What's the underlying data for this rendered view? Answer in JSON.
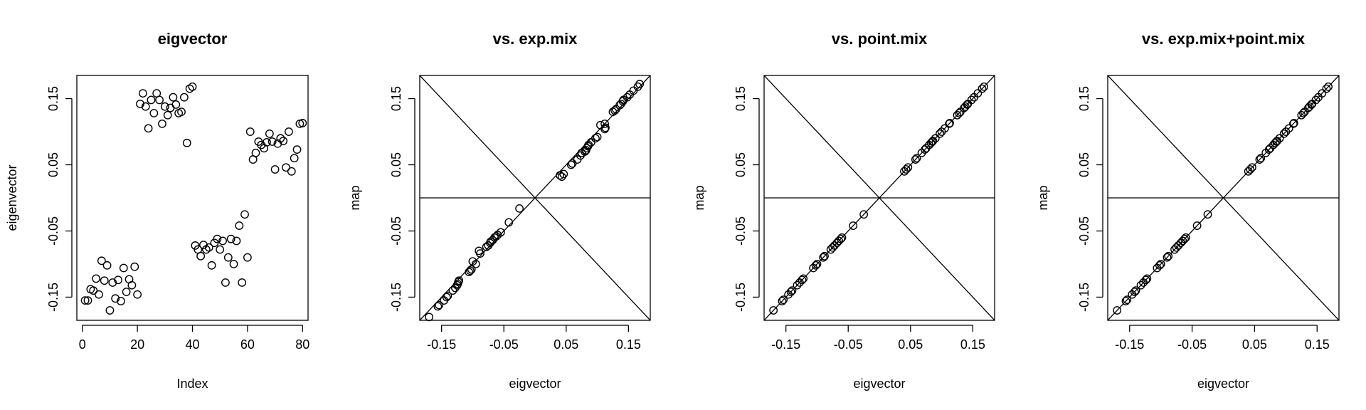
{
  "chart_data": [
    {
      "type": "scatter",
      "title": "eigvector",
      "xlabel": "Index",
      "ylabel": "eigenvector",
      "xlim": [
        -2,
        82
      ],
      "ylim": [
        -0.185,
        0.185
      ],
      "x_ticks": [
        0,
        20,
        40,
        60,
        80
      ],
      "x_tick_labels": [
        "0",
        "20",
        "40",
        "60",
        "80"
      ],
      "y_ticks": [
        -0.15,
        -0.05,
        0.05,
        0.15
      ],
      "y_tick_labels": [
        "-0.15",
        "-0.05",
        "0.05",
        "0.15"
      ],
      "grid": false,
      "points": [
        [
          1,
          -0.155
        ],
        [
          2,
          -0.155
        ],
        [
          3,
          -0.138
        ],
        [
          4,
          -0.14
        ],
        [
          5,
          -0.122
        ],
        [
          6,
          -0.146
        ],
        [
          7,
          -0.095
        ],
        [
          8,
          -0.125
        ],
        [
          9,
          -0.102
        ],
        [
          10,
          -0.17
        ],
        [
          11,
          -0.128
        ],
        [
          12,
          -0.152
        ],
        [
          13,
          -0.124
        ],
        [
          14,
          -0.156
        ],
        [
          15,
          -0.106
        ],
        [
          16,
          -0.142
        ],
        [
          17,
          -0.123
        ],
        [
          18,
          -0.132
        ],
        [
          19,
          -0.104
        ],
        [
          20,
          -0.146
        ],
        [
          21,
          0.142
        ],
        [
          22,
          0.158
        ],
        [
          23,
          0.138
        ],
        [
          24,
          0.105
        ],
        [
          25,
          0.148
        ],
        [
          26,
          0.128
        ],
        [
          27,
          0.158
        ],
        [
          28,
          0.148
        ],
        [
          29,
          0.112
        ],
        [
          30,
          0.138
        ],
        [
          31,
          0.125
        ],
        [
          32,
          0.136
        ],
        [
          33,
          0.152
        ],
        [
          34,
          0.141
        ],
        [
          35,
          0.128
        ],
        [
          36,
          0.13
        ],
        [
          37,
          0.152
        ],
        [
          38,
          0.083
        ],
        [
          39,
          0.165
        ],
        [
          40,
          0.168
        ],
        [
          41,
          -0.072
        ],
        [
          42,
          -0.078
        ],
        [
          43,
          -0.088
        ],
        [
          44,
          -0.071
        ],
        [
          45,
          -0.078
        ],
        [
          46,
          -0.075
        ],
        [
          47,
          -0.102
        ],
        [
          48,
          -0.068
        ],
        [
          49,
          -0.062
        ],
        [
          50,
          -0.078
        ],
        [
          51,
          -0.065
        ],
        [
          52,
          -0.128
        ],
        [
          53,
          -0.09
        ],
        [
          54,
          -0.062
        ],
        [
          55,
          -0.1
        ],
        [
          56,
          -0.065
        ],
        [
          57,
          -0.042
        ],
        [
          58,
          -0.128
        ],
        [
          59,
          -0.025
        ],
        [
          60,
          -0.09
        ],
        [
          61,
          0.1
        ],
        [
          62,
          0.058
        ],
        [
          63,
          0.068
        ],
        [
          64,
          0.085
        ],
        [
          65,
          0.08
        ],
        [
          66,
          0.075
        ],
        [
          67,
          0.084
        ],
        [
          68,
          0.097
        ],
        [
          69,
          0.085
        ],
        [
          70,
          0.043
        ],
        [
          71,
          0.082
        ],
        [
          72,
          0.09
        ],
        [
          73,
          0.086
        ],
        [
          74,
          0.046
        ],
        [
          75,
          0.1
        ],
        [
          76,
          0.04
        ],
        [
          77,
          0.06
        ],
        [
          78,
          0.073
        ],
        [
          79,
          0.112
        ],
        [
          80,
          0.113
        ]
      ]
    },
    {
      "type": "scatter",
      "title": "vs. exp.mix",
      "xlabel": "eigvector",
      "ylabel": "map",
      "xlim": [
        -0.185,
        0.185
      ],
      "ylim": [
        -0.185,
        0.185
      ],
      "x_ticks": [
        -0.15,
        -0.05,
        0.05,
        0.15
      ],
      "x_tick_labels": [
        "-0.15",
        "-0.05",
        "0.05",
        "0.15"
      ],
      "y_ticks": [
        -0.15,
        -0.05,
        0.05,
        0.15
      ],
      "y_tick_labels": [
        "-0.15",
        "-0.05",
        "0.05",
        "0.15"
      ],
      "grid": false,
      "reference_lines": [
        "y = 0",
        "y = x",
        "y = -x"
      ],
      "points": [
        [
          -0.17,
          -0.18
        ],
        [
          -0.156,
          -0.164
        ],
        [
          -0.154,
          -0.162
        ],
        [
          -0.146,
          -0.155
        ],
        [
          -0.142,
          -0.15
        ],
        [
          -0.14,
          -0.148
        ],
        [
          -0.132,
          -0.14
        ],
        [
          -0.128,
          -0.136
        ],
        [
          -0.125,
          -0.132
        ],
        [
          -0.124,
          -0.13
        ],
        [
          -0.123,
          -0.127
        ],
        [
          -0.122,
          -0.125
        ],
        [
          -0.106,
          -0.112
        ],
        [
          -0.104,
          -0.11
        ],
        [
          -0.102,
          -0.108
        ],
        [
          -0.1,
          -0.096
        ],
        [
          -0.095,
          -0.1
        ],
        [
          -0.09,
          -0.08
        ],
        [
          -0.088,
          -0.084
        ],
        [
          -0.078,
          -0.074
        ],
        [
          -0.075,
          -0.072
        ],
        [
          -0.072,
          -0.068
        ],
        [
          -0.071,
          -0.066
        ],
        [
          -0.068,
          -0.064
        ],
        [
          -0.065,
          -0.06
        ],
        [
          -0.062,
          -0.058
        ],
        [
          -0.06,
          -0.056
        ],
        [
          -0.055,
          -0.052
        ],
        [
          -0.042,
          -0.037
        ],
        [
          -0.025,
          -0.016
        ],
        [
          0.043,
          0.032
        ],
        [
          0.046,
          0.036
        ],
        [
          0.04,
          0.034
        ],
        [
          0.058,
          0.05
        ],
        [
          0.06,
          0.052
        ],
        [
          0.068,
          0.058
        ],
        [
          0.073,
          0.064
        ],
        [
          0.075,
          0.068
        ],
        [
          0.08,
          0.07
        ],
        [
          0.082,
          0.072
        ],
        [
          0.085,
          0.078
        ],
        [
          0.086,
          0.08
        ],
        [
          0.083,
          0.075
        ],
        [
          0.09,
          0.084
        ],
        [
          0.097,
          0.09
        ],
        [
          0.1,
          0.092
        ],
        [
          0.105,
          0.11
        ],
        [
          0.112,
          0.104
        ],
        [
          0.113,
          0.106
        ],
        [
          0.112,
          0.112
        ],
        [
          0.125,
          0.13
        ],
        [
          0.128,
          0.132
        ],
        [
          0.13,
          0.134
        ],
        [
          0.136,
          0.14
        ],
        [
          0.138,
          0.142
        ],
        [
          0.141,
          0.146
        ],
        [
          0.142,
          0.148
        ],
        [
          0.148,
          0.152
        ],
        [
          0.152,
          0.156
        ],
        [
          0.158,
          0.162
        ],
        [
          0.165,
          0.168
        ],
        [
          0.168,
          0.172
        ]
      ]
    },
    {
      "type": "scatter",
      "title": "vs. point.mix",
      "xlabel": "eigvector",
      "ylabel": "map",
      "xlim": [
        -0.185,
        0.185
      ],
      "ylim": [
        -0.185,
        0.185
      ],
      "x_ticks": [
        -0.15,
        -0.05,
        0.05,
        0.15
      ],
      "x_tick_labels": [
        "-0.15",
        "-0.05",
        "0.05",
        "0.15"
      ],
      "y_ticks": [
        -0.15,
        -0.05,
        0.05,
        0.15
      ],
      "y_tick_labels": [
        "-0.15",
        "-0.05",
        "0.05",
        "0.15"
      ],
      "grid": false,
      "reference_lines": [
        "y = 0",
        "y = x",
        "y = -x"
      ],
      "points": [
        [
          -0.17,
          -0.17
        ],
        [
          -0.156,
          -0.156
        ],
        [
          -0.154,
          -0.154
        ],
        [
          -0.146,
          -0.146
        ],
        [
          -0.142,
          -0.142
        ],
        [
          -0.14,
          -0.14
        ],
        [
          -0.132,
          -0.132
        ],
        [
          -0.128,
          -0.128
        ],
        [
          -0.124,
          -0.124
        ],
        [
          -0.122,
          -0.122
        ],
        [
          -0.106,
          -0.106
        ],
        [
          -0.102,
          -0.102
        ],
        [
          -0.1,
          -0.1
        ],
        [
          -0.09,
          -0.09
        ],
        [
          -0.088,
          -0.088
        ],
        [
          -0.078,
          -0.078
        ],
        [
          -0.075,
          -0.075
        ],
        [
          -0.072,
          -0.072
        ],
        [
          -0.068,
          -0.068
        ],
        [
          -0.065,
          -0.065
        ],
        [
          -0.062,
          -0.062
        ],
        [
          -0.06,
          -0.06
        ],
        [
          -0.042,
          -0.042
        ],
        [
          -0.025,
          -0.025
        ],
        [
          0.04,
          0.04
        ],
        [
          0.043,
          0.043
        ],
        [
          0.046,
          0.046
        ],
        [
          0.058,
          0.058
        ],
        [
          0.06,
          0.06
        ],
        [
          0.068,
          0.068
        ],
        [
          0.073,
          0.073
        ],
        [
          0.075,
          0.075
        ],
        [
          0.08,
          0.08
        ],
        [
          0.083,
          0.083
        ],
        [
          0.085,
          0.085
        ],
        [
          0.086,
          0.086
        ],
        [
          0.09,
          0.09
        ],
        [
          0.097,
          0.097
        ],
        [
          0.1,
          0.1
        ],
        [
          0.105,
          0.105
        ],
        [
          0.112,
          0.112
        ],
        [
          0.113,
          0.113
        ],
        [
          0.125,
          0.125
        ],
        [
          0.128,
          0.128
        ],
        [
          0.13,
          0.13
        ],
        [
          0.136,
          0.136
        ],
        [
          0.138,
          0.138
        ],
        [
          0.141,
          0.141
        ],
        [
          0.142,
          0.142
        ],
        [
          0.148,
          0.148
        ],
        [
          0.152,
          0.152
        ],
        [
          0.158,
          0.158
        ],
        [
          0.165,
          0.165
        ],
        [
          0.168,
          0.168
        ]
      ]
    },
    {
      "type": "scatter",
      "title": "vs. exp.mix+point.mix",
      "xlabel": "eigvector",
      "ylabel": "map",
      "xlim": [
        -0.185,
        0.185
      ],
      "ylim": [
        -0.185,
        0.185
      ],
      "x_ticks": [
        -0.15,
        -0.05,
        0.05,
        0.15
      ],
      "x_tick_labels": [
        "-0.15",
        "-0.05",
        "0.05",
        "0.15"
      ],
      "y_ticks": [
        -0.15,
        -0.05,
        0.05,
        0.15
      ],
      "y_tick_labels": [
        "-0.15",
        "-0.05",
        "0.05",
        "0.15"
      ],
      "grid": false,
      "reference_lines": [
        "y = 0",
        "y = x",
        "y = -x"
      ],
      "points": [
        [
          -0.17,
          -0.17
        ],
        [
          -0.156,
          -0.156
        ],
        [
          -0.154,
          -0.154
        ],
        [
          -0.146,
          -0.146
        ],
        [
          -0.142,
          -0.142
        ],
        [
          -0.14,
          -0.14
        ],
        [
          -0.132,
          -0.132
        ],
        [
          -0.128,
          -0.128
        ],
        [
          -0.124,
          -0.124
        ],
        [
          -0.122,
          -0.122
        ],
        [
          -0.106,
          -0.106
        ],
        [
          -0.102,
          -0.102
        ],
        [
          -0.1,
          -0.1
        ],
        [
          -0.09,
          -0.09
        ],
        [
          -0.088,
          -0.088
        ],
        [
          -0.078,
          -0.078
        ],
        [
          -0.075,
          -0.075
        ],
        [
          -0.072,
          -0.072
        ],
        [
          -0.068,
          -0.068
        ],
        [
          -0.065,
          -0.065
        ],
        [
          -0.062,
          -0.062
        ],
        [
          -0.06,
          -0.06
        ],
        [
          -0.042,
          -0.042
        ],
        [
          -0.025,
          -0.025
        ],
        [
          0.04,
          0.04
        ],
        [
          0.043,
          0.043
        ],
        [
          0.046,
          0.046
        ],
        [
          0.058,
          0.058
        ],
        [
          0.06,
          0.06
        ],
        [
          0.068,
          0.068
        ],
        [
          0.073,
          0.073
        ],
        [
          0.075,
          0.075
        ],
        [
          0.08,
          0.08
        ],
        [
          0.083,
          0.083
        ],
        [
          0.085,
          0.085
        ],
        [
          0.086,
          0.086
        ],
        [
          0.09,
          0.09
        ],
        [
          0.097,
          0.097
        ],
        [
          0.1,
          0.1
        ],
        [
          0.105,
          0.105
        ],
        [
          0.112,
          0.112
        ],
        [
          0.113,
          0.113
        ],
        [
          0.125,
          0.125
        ],
        [
          0.128,
          0.128
        ],
        [
          0.13,
          0.13
        ],
        [
          0.136,
          0.136
        ],
        [
          0.138,
          0.138
        ],
        [
          0.141,
          0.141
        ],
        [
          0.142,
          0.142
        ],
        [
          0.148,
          0.148
        ],
        [
          0.152,
          0.152
        ],
        [
          0.158,
          0.158
        ],
        [
          0.165,
          0.165
        ],
        [
          0.168,
          0.168
        ]
      ]
    }
  ]
}
